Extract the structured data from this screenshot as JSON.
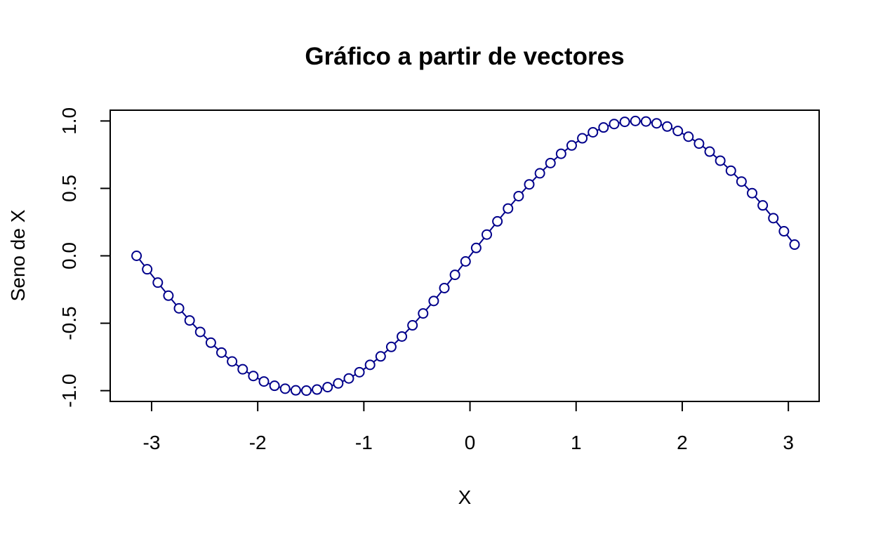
{
  "chart_data": {
    "type": "line",
    "title": "Gráfico a partir de vectores",
    "xlabel": "X",
    "ylabel": "Seno de X",
    "xlim": [
      -3.39,
      3.29
    ],
    "ylim": [
      -1.08,
      1.08
    ],
    "x_ticks": [
      -3,
      -2,
      -1,
      0,
      1,
      2,
      3
    ],
    "y_ticks": [
      -1.0,
      -0.5,
      0.0,
      0.5,
      1.0
    ],
    "x_tick_labels": [
      "-3",
      "-2",
      "-1",
      "0",
      "1",
      "2",
      "3"
    ],
    "y_tick_labels": [
      "-1.0",
      "-0.5",
      "0.0",
      "0.5",
      "1.0"
    ],
    "grid": false,
    "legend": "none",
    "marker": "open-circle",
    "series_color": "#00008B",
    "series": [
      {
        "x": [
          -3.1416,
          -3.0416,
          -2.9416,
          -2.8416,
          -2.7416,
          -2.6416,
          -2.5416,
          -2.4416,
          -2.3416,
          -2.2416,
          -2.1416,
          -2.0416,
          -1.9416,
          -1.8416,
          -1.7416,
          -1.6416,
          -1.5416,
          -1.4416,
          -1.3416,
          -1.2416,
          -1.1416,
          -1.0416,
          -0.9416,
          -0.8416,
          -0.7416,
          -0.6416,
          -0.5416,
          -0.4416,
          -0.3416,
          -0.2416,
          -0.1416,
          -0.0416,
          0.0584,
          0.1584,
          0.2584,
          0.3584,
          0.4584,
          0.5584,
          0.6584,
          0.7584,
          0.8584,
          0.9584,
          1.0584,
          1.1584,
          1.2584,
          1.3584,
          1.4584,
          1.5584,
          1.6584,
          1.7584,
          1.8584,
          1.9584,
          2.0584,
          2.1584,
          2.2584,
          2.3584,
          2.4584,
          2.5584,
          2.6584,
          2.7584,
          2.8584,
          2.9584,
          3.0584
        ],
        "y": [
          0.0,
          -0.0998,
          -0.1987,
          -0.2955,
          -0.3894,
          -0.4794,
          -0.5646,
          -0.6442,
          -0.7174,
          -0.7833,
          -0.8415,
          -0.8912,
          -0.932,
          -0.9636,
          -0.9854,
          -0.9975,
          -0.9996,
          -0.9917,
          -0.9738,
          -0.9463,
          -0.9093,
          -0.8632,
          -0.8085,
          -0.7457,
          -0.6755,
          -0.5985,
          -0.5155,
          -0.4274,
          -0.335,
          -0.2392,
          -0.1411,
          -0.0416,
          0.0584,
          0.1577,
          0.2555,
          0.3508,
          0.4425,
          0.5298,
          0.6119,
          0.6878,
          0.7568,
          0.8183,
          0.8716,
          0.9162,
          0.9516,
          0.9775,
          0.9937,
          1.0,
          0.9962,
          0.9825,
          0.9589,
          0.9258,
          0.8835,
          0.8323,
          0.7728,
          0.7055,
          0.6313,
          0.5507,
          0.4646,
          0.3739,
          0.2794,
          0.1821,
          0.0831
        ]
      }
    ]
  }
}
